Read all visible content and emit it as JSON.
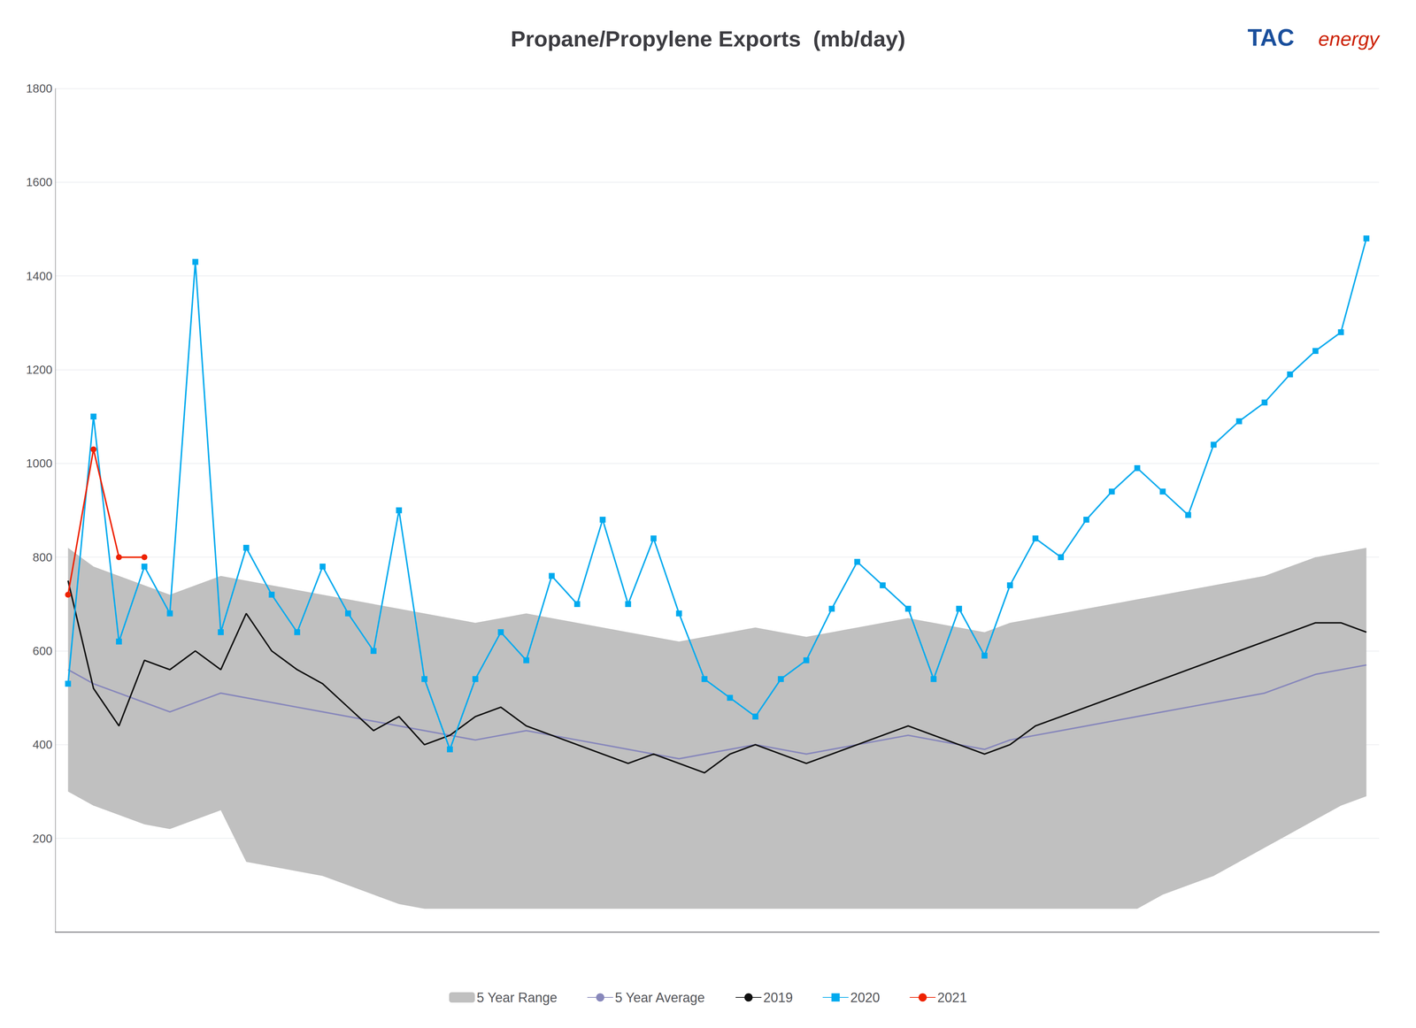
{
  "chart_data": {
    "type": "line",
    "title": "Propane/Propylene Exports  (mb/day)",
    "annotations": [
      {
        "text": "TAC",
        "color": "#1a4f9c"
      },
      {
        "text": "energy",
        "color": "#cc2200"
      }
    ],
    "categories": [
      null,
      null,
      null,
      null,
      null,
      null,
      null,
      null,
      null,
      null,
      null,
      null,
      null,
      null,
      null,
      null,
      null,
      null,
      null,
      null,
      null,
      null,
      null,
      null,
      null,
      null,
      null,
      null,
      null,
      null,
      null,
      null,
      null,
      null,
      null,
      null,
      null,
      null,
      null,
      null,
      null,
      null,
      null,
      null,
      null,
      null,
      null,
      null,
      null,
      null,
      null,
      null
    ],
    "ylim": [
      0,
      1800
    ],
    "yticks": [
      200,
      400,
      600,
      800,
      1000,
      1200,
      1400,
      1600,
      1800
    ],
    "grid": true,
    "legend": "bottom",
    "tick_labels": "y",
    "series": [
      {
        "name": "5 Year Range",
        "type": "band",
        "color": "#c0c0c0",
        "lower": [
          300,
          270,
          250,
          230,
          220,
          240,
          260,
          150,
          140,
          130,
          120,
          100,
          80,
          60,
          50,
          50,
          50,
          50,
          50,
          50,
          50,
          50,
          50,
          50,
          50,
          50,
          50,
          50,
          50,
          50,
          50,
          50,
          50,
          50,
          50,
          50,
          50,
          50,
          50,
          50,
          50,
          50,
          50,
          80,
          100,
          120,
          150,
          180,
          210,
          240,
          270,
          290
        ],
        "upper": [
          820,
          780,
          760,
          740,
          720,
          740,
          760,
          750,
          740,
          730,
          720,
          710,
          700,
          690,
          680,
          670,
          660,
          670,
          680,
          670,
          660,
          650,
          640,
          630,
          620,
          630,
          640,
          650,
          640,
          630,
          640,
          650,
          660,
          670,
          660,
          650,
          640,
          660,
          670,
          680,
          690,
          700,
          710,
          720,
          730,
          740,
          750,
          760,
          780,
          800,
          810,
          820
        ]
      },
      {
        "name": "5 Year Average",
        "type": "line",
        "color": "#8888bb",
        "marker": "none",
        "values": [
          560,
          530,
          510,
          490,
          470,
          490,
          510,
          500,
          490,
          480,
          470,
          460,
          450,
          440,
          430,
          420,
          410,
          420,
          430,
          420,
          410,
          400,
          390,
          380,
          370,
          380,
          390,
          400,
          390,
          380,
          390,
          400,
          410,
          420,
          410,
          400,
          390,
          410,
          420,
          430,
          440,
          450,
          460,
          470,
          480,
          490,
          500,
          510,
          530,
          550,
          560,
          570
        ]
      },
      {
        "name": "2019",
        "type": "line",
        "color": "#111111",
        "marker": "none",
        "values": [
          750,
          520,
          440,
          580,
          560,
          600,
          560,
          680,
          600,
          560,
          530,
          480,
          430,
          460,
          400,
          420,
          460,
          480,
          440,
          420,
          400,
          380,
          360,
          380,
          360,
          340,
          380,
          400,
          380,
          360,
          380,
          400,
          420,
          440,
          420,
          400,
          380,
          400,
          440,
          460,
          480,
          500,
          520,
          540,
          560,
          580,
          600,
          620,
          640,
          660,
          660,
          640
        ]
      },
      {
        "name": "2020",
        "type": "line",
        "color": "#00aaee",
        "marker": "square",
        "values": [
          530,
          1100,
          620,
          780,
          680,
          1430,
          640,
          820,
          720,
          640,
          780,
          680,
          600,
          900,
          540,
          390,
          540,
          640,
          580,
          760,
          700,
          880,
          700,
          840,
          680,
          540,
          500,
          460,
          540,
          580,
          690,
          790,
          740,
          690,
          540,
          690,
          590,
          740,
          840,
          800,
          880,
          940,
          990,
          940,
          890,
          1040,
          1090,
          1130,
          1190,
          1240,
          1280,
          1480
        ]
      },
      {
        "name": "2021",
        "type": "line",
        "color": "#ee2200",
        "marker": "circle",
        "values": [
          720,
          1030,
          800,
          800,
          null,
          null,
          null,
          null,
          null,
          null,
          null,
          null,
          null,
          null,
          null,
          null,
          null,
          null,
          null,
          null,
          null,
          null,
          null,
          null,
          null,
          null,
          null,
          null,
          null,
          null,
          null,
          null,
          null,
          null,
          null,
          null,
          null,
          null,
          null,
          null,
          null,
          null,
          null,
          null,
          null,
          null,
          null,
          null,
          null,
          null,
          null,
          null
        ]
      }
    ]
  }
}
